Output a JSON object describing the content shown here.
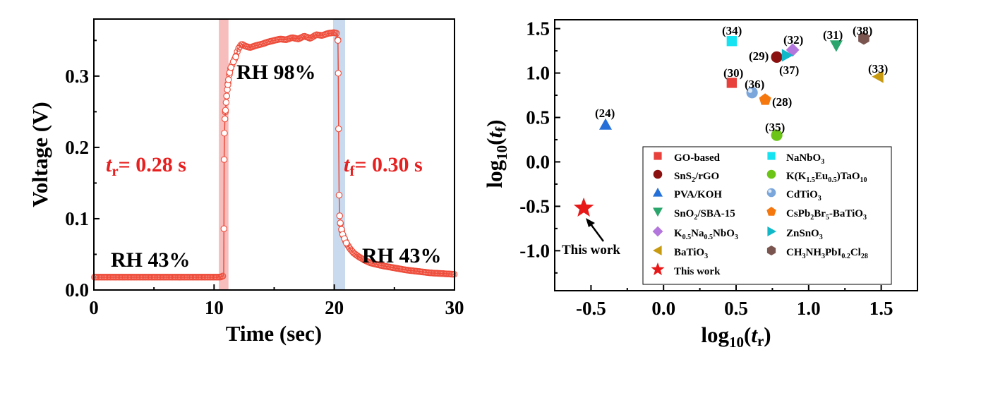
{
  "chart_data": [
    {
      "type": "line",
      "xlabel": "Time (sec)",
      "ylabel": "Voltage (V)",
      "xlim": [
        0,
        30
      ],
      "ylim": [
        0,
        0.38
      ],
      "x_ticks": [
        "0",
        "10",
        "20",
        "30"
      ],
      "y_ticks": [
        "0.0",
        "0.1",
        "0.2",
        "0.3"
      ],
      "highlight_bands": [
        {
          "name": "rise",
          "x_range": [
            10.4,
            11.2
          ],
          "color": "#f4a7a7"
        },
        {
          "name": "fall",
          "x_range": [
            19.9,
            20.9
          ],
          "color": "#b7cde8"
        }
      ],
      "series": [
        {
          "color": "#ee4c3a",
          "points": [
            [
              0.0,
              0.018
            ],
            [
              1,
              0.018
            ],
            [
              2,
              0.018
            ],
            [
              3,
              0.018
            ],
            [
              4,
              0.018
            ],
            [
              5,
              0.018
            ],
            [
              6,
              0.018
            ],
            [
              7,
              0.018
            ],
            [
              8,
              0.018
            ],
            [
              9,
              0.018
            ],
            [
              10,
              0.018
            ],
            [
              10.5,
              0.018
            ],
            [
              10.8,
              0.02
            ],
            [
              10.82,
              0.086
            ],
            [
              10.84,
              0.183
            ],
            [
              10.86,
              0.22
            ],
            [
              10.9,
              0.24
            ],
            [
              10.95,
              0.252
            ],
            [
              11.0,
              0.263
            ],
            [
              11.05,
              0.272
            ],
            [
              11.1,
              0.281
            ],
            [
              11.15,
              0.288
            ],
            [
              11.2,
              0.295
            ],
            [
              11.3,
              0.305
            ],
            [
              11.4,
              0.312
            ],
            [
              11.6,
              0.32
            ],
            [
              11.8,
              0.327
            ],
            [
              12.0,
              0.338
            ],
            [
              12.3,
              0.345
            ],
            [
              12.6,
              0.342
            ],
            [
              13.0,
              0.34
            ],
            [
              13.5,
              0.343
            ],
            [
              14.0,
              0.345
            ],
            [
              14.5,
              0.348
            ],
            [
              15.0,
              0.35
            ],
            [
              15.5,
              0.352
            ],
            [
              16.0,
              0.351
            ],
            [
              16.5,
              0.354
            ],
            [
              17.0,
              0.352
            ],
            [
              17.5,
              0.356
            ],
            [
              18.0,
              0.353
            ],
            [
              18.5,
              0.358
            ],
            [
              19.0,
              0.357
            ],
            [
              19.5,
              0.36
            ],
            [
              20.0,
              0.361
            ],
            [
              20.2,
              0.36
            ],
            [
              20.3,
              0.35
            ],
            [
              20.33,
              0.304
            ],
            [
              20.36,
              0.226
            ],
            [
              20.4,
              0.133
            ],
            [
              20.45,
              0.104
            ],
            [
              20.5,
              0.094
            ],
            [
              20.6,
              0.085
            ],
            [
              20.7,
              0.078
            ],
            [
              20.85,
              0.072
            ],
            [
              21.0,
              0.066
            ],
            [
              21.3,
              0.058
            ],
            [
              21.6,
              0.052
            ],
            [
              22.0,
              0.047
            ],
            [
              22.5,
              0.042
            ],
            [
              23.0,
              0.038
            ],
            [
              24,
              0.034
            ],
            [
              25,
              0.031
            ],
            [
              26,
              0.028
            ],
            [
              27,
              0.026
            ],
            [
              28,
              0.024
            ],
            [
              29,
              0.023
            ],
            [
              30,
              0.022
            ]
          ]
        }
      ],
      "annotations": [
        {
          "key": "rh1",
          "text": "RH 43%",
          "x": 0.9,
          "y": 0.027
        },
        {
          "key": "rh2",
          "text": "RH 98%",
          "x": 11.6,
          "y": 0.315
        },
        {
          "key": "rh3",
          "text": "RH 43%",
          "x": 22.2,
          "y": 0.036
        },
        {
          "key": "tr",
          "text": "t_r = 0.28 s",
          "x": 1.0,
          "y": 0.185
        },
        {
          "key": "tf",
          "text": "t_f = 0.30 s",
          "x": 20.6,
          "y": 0.185
        }
      ],
      "labels": {
        "rh1": "RH 43%",
        "rh2": "RH 98%",
        "rh3": "RH 43%",
        "tr_var": "t",
        "tr_sub": "r",
        "tr_val": "= 0.28 s",
        "tf_var": "t",
        "tf_sub": "f",
        "tf_val": "= 0.30 s"
      }
    },
    {
      "type": "scatter",
      "xlabel": "log10(tr)",
      "ylabel": "log10(tf)",
      "xlim": [
        -0.75,
        1.75
      ],
      "ylim": [
        -1.45,
        1.6
      ],
      "x_ticks": [
        "-0.5",
        "0.0",
        "0.5",
        "1.0",
        "1.5"
      ],
      "y_ticks": [
        "-1.0",
        "-0.5",
        "0.0",
        "0.5",
        "1.0",
        "1.5"
      ],
      "points": [
        {
          "label": "GO-based",
          "ref": "(30)",
          "x": 0.47,
          "y": 0.89,
          "marker": "square",
          "color": "#e8413c"
        },
        {
          "label": "NaNbO3",
          "ref": "(34)",
          "x": 0.47,
          "y": 1.36,
          "marker": "square",
          "color": "#16e3f2"
        },
        {
          "label": "SnS2/rGO",
          "ref": "(29)",
          "x": 0.78,
          "y": 1.18,
          "marker": "circle",
          "color": "#8b1010"
        },
        {
          "label": "K(K1.5Eu0.5)TaO10",
          "ref": "(35)",
          "x": 0.78,
          "y": 0.3,
          "marker": "circle",
          "color": "#6cc417"
        },
        {
          "label": "PVA/KOH",
          "ref": "(24)",
          "x": -0.4,
          "y": 0.42,
          "marker": "triangle-up",
          "color": "#2470d8"
        },
        {
          "label": "CdTiO3",
          "ref": "(36)",
          "x": 0.61,
          "y": 0.78,
          "marker": "sphere",
          "color": "#7aa6dc"
        },
        {
          "label": "SnO2/SBA-15",
          "ref": "(31)",
          "x": 1.19,
          "y": 1.31,
          "marker": "triangle-down",
          "color": "#2aa56b"
        },
        {
          "label": "CsPb2Br5-BaTiO3",
          "ref": "(28)",
          "x": 0.7,
          "y": 0.7,
          "marker": "pentagon",
          "color": "#f5780f"
        },
        {
          "label": "K0.5Na0.5NbO3",
          "ref": "(32)",
          "x": 0.89,
          "y": 1.26,
          "marker": "diamond",
          "color": "#b376dc"
        },
        {
          "label": "ZnSnO3",
          "ref": "(37)",
          "x": 0.85,
          "y": 1.2,
          "marker": "triangle-right",
          "color": "#10b8c8"
        },
        {
          "label": "BaTiO3",
          "ref": "(33)",
          "x": 1.48,
          "y": 0.96,
          "marker": "triangle-left",
          "color": "#c79a10"
        },
        {
          "label": "CH3NH3PbI0.2Cl28",
          "ref": "(38)",
          "x": 1.38,
          "y": 1.39,
          "marker": "hexagon",
          "color": "#7a5550"
        },
        {
          "label": "This work",
          "ref": "",
          "x": -0.55,
          "y": -0.52,
          "marker": "star",
          "color": "#e81818"
        }
      ],
      "refs": {
        "r30": "(30)",
        "r34": "(34)",
        "r29": "(29)",
        "r35": "(35)",
        "r24": "(24)",
        "r36": "(36)",
        "r31": "(31)",
        "r28": "(28)",
        "r32": "(32)",
        "r37": "(37)",
        "r33": "(33)",
        "r38": "(38)"
      },
      "this_work_label": "This work",
      "legend": {
        "placement": "bottom-right",
        "entries": [
          {
            "key": "go",
            "text": "GO-based",
            "marker": "square",
            "color": "#e8413c"
          },
          {
            "key": "nanbo3",
            "text": "NaNbO3",
            "marker": "square",
            "color": "#16e3f2"
          },
          {
            "key": "sns2",
            "text": "SnS2/rGO",
            "marker": "circle",
            "color": "#8b1010"
          },
          {
            "key": "kket",
            "text": "K(K1.5Eu0.5)TaO10",
            "marker": "circle",
            "color": "#6cc417"
          },
          {
            "key": "pva",
            "text": "PVA/KOH",
            "marker": "triangle-up",
            "color": "#2470d8"
          },
          {
            "key": "cdtio3",
            "text": "CdTiO3",
            "marker": "sphere",
            "color": "#7aa6dc"
          },
          {
            "key": "sno2",
            "text": "SnO2/SBA-15",
            "marker": "triangle-down",
            "color": "#2aa56b"
          },
          {
            "key": "cspb",
            "text": "CsPb2Br5-BaTiO3",
            "marker": "pentagon",
            "color": "#f5780f"
          },
          {
            "key": "knn",
            "text": "K0.5Na0.5NbO3",
            "marker": "diamond",
            "color": "#b376dc"
          },
          {
            "key": "znsno3",
            "text": "ZnSnO3",
            "marker": "triangle-right",
            "color": "#10b8c8"
          },
          {
            "key": "batio3",
            "text": "BaTiO3",
            "marker": "triangle-left",
            "color": "#c79a10"
          },
          {
            "key": "mapbi",
            "text": "CH3NH3PbI0.2Cl28",
            "marker": "hexagon",
            "color": "#7a5550"
          },
          {
            "key": "thiswork",
            "text": "This work",
            "marker": "star",
            "color": "#e81818"
          }
        ]
      },
      "legend_text": {
        "go": "GO-based",
        "nanbo3": "NaNbO",
        "sns2_a": "SnS",
        "sns2_b": "/rGO",
        "kket_a": "K(K",
        "kket_b": "Eu",
        "kket_c": ")TaO",
        "pva": "PVA/KOH",
        "cdtio3": "CdTiO",
        "sno2_a": "SnO",
        "sno2_b": "/SBA-15",
        "cspb_a": "CsPb",
        "cspb_b": "Br",
        "cspb_c": "-BaTiO",
        "knn_a": "K",
        "knn_b": "Na",
        "knn_c": "NbO",
        "znsno3": "ZnSnO",
        "batio3": "BaTiO",
        "mapbi_a": "CH",
        "mapbi_b": "NH",
        "mapbi_c": "PbI",
        "mapbi_d": "Cl",
        "thiswork": "This work",
        "sub_2": "2",
        "sub_3": "3",
        "sub_5": "5",
        "sub_10": "10",
        "sub_15": "1.5",
        "sub_05": "0.5",
        "sub_02": "0.2",
        "sub_28": "28"
      },
      "axis_text": {
        "x_log": "log",
        "x_10": "10",
        "x_open": "(",
        "x_t": "t",
        "x_r": "r",
        "x_close": ")",
        "y_log": "log",
        "y_10": "10",
        "y_open": "(",
        "y_t": "t",
        "y_f": "f",
        "y_close": ")"
      }
    }
  ]
}
